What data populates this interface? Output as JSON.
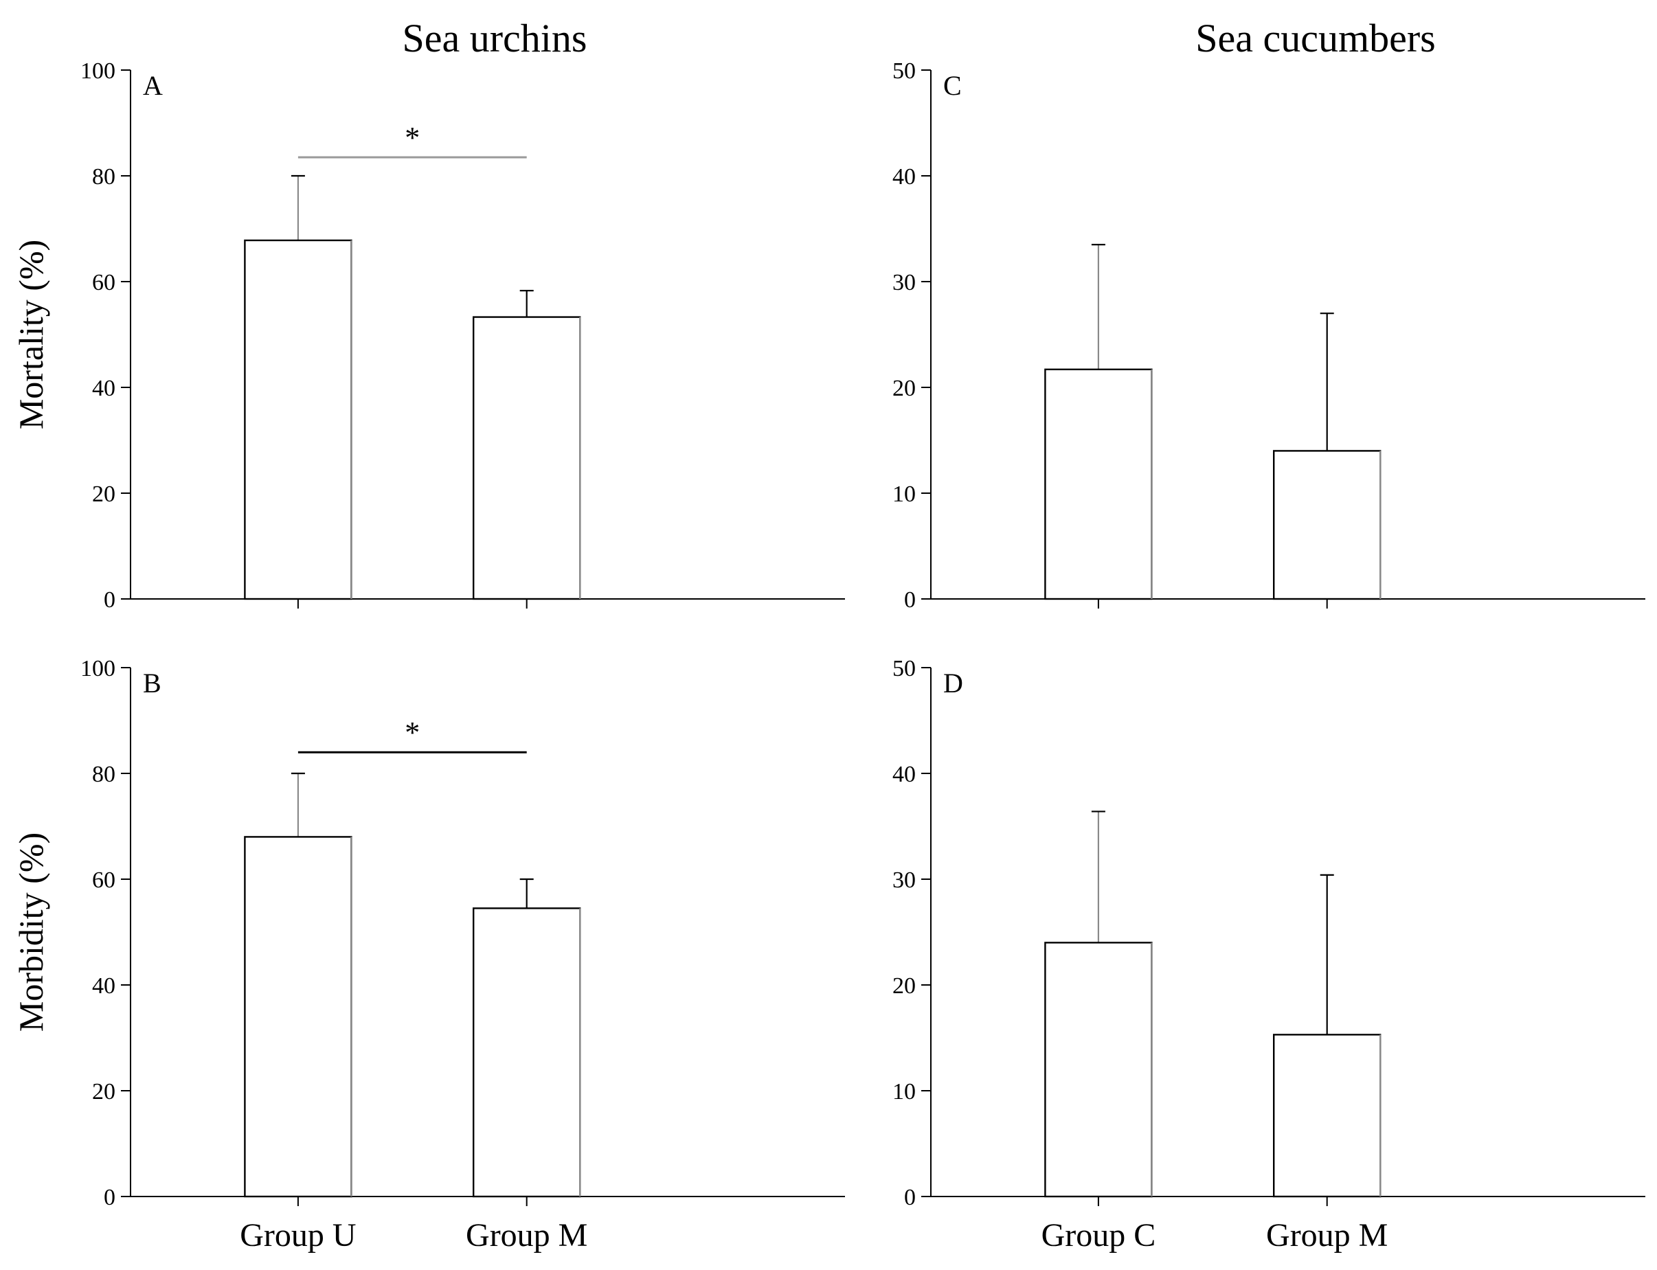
{
  "figure": {
    "column_titles": [
      "Sea urchins",
      "Sea cucumbers"
    ]
  },
  "chart_data": [
    {
      "panel": "A",
      "type": "bar",
      "title": "Sea urchins",
      "ylabel": "Mortality (%)",
      "xlabel": "",
      "categories": [
        "Group U",
        "Group M"
      ],
      "values": [
        67.8,
        53.3
      ],
      "error_upper": [
        12.2,
        5.0
      ],
      "ylim": [
        0,
        100
      ],
      "yticks": [
        0,
        20,
        40,
        60,
        80,
        100
      ],
      "significance": {
        "from": 0,
        "to": 1,
        "label": "*",
        "level": 83.5,
        "color": "#9a9a9a"
      },
      "show_category_labels": false
    },
    {
      "panel": "B",
      "type": "bar",
      "title": "",
      "ylabel": "Morbidity (%)",
      "xlabel": "",
      "categories": [
        "Group U",
        "Group M"
      ],
      "values": [
        68.0,
        54.5
      ],
      "error_upper": [
        12.0,
        5.5
      ],
      "ylim": [
        0,
        100
      ],
      "yticks": [
        0,
        20,
        40,
        60,
        80,
        100
      ],
      "significance": {
        "from": 0,
        "to": 1,
        "label": "*",
        "level": 84.0,
        "color": "#000000"
      },
      "show_category_labels": true
    },
    {
      "panel": "C",
      "type": "bar",
      "title": "Sea cucumbers",
      "ylabel": "",
      "xlabel": "",
      "categories": [
        "Group C",
        "Group M"
      ],
      "values": [
        21.7,
        14.0
      ],
      "error_upper": [
        11.8,
        13.0
      ],
      "ylim": [
        0,
        50
      ],
      "yticks": [
        0,
        10,
        20,
        30,
        40,
        50
      ],
      "show_category_labels": false
    },
    {
      "panel": "D",
      "type": "bar",
      "title": "",
      "ylabel": "",
      "xlabel": "",
      "categories": [
        "Group C",
        "Group M"
      ],
      "values": [
        24.0,
        15.3
      ],
      "error_upper": [
        12.4,
        15.1
      ],
      "ylim": [
        0,
        50
      ],
      "yticks": [
        0,
        10,
        20,
        30,
        40,
        50
      ],
      "show_category_labels": true
    }
  ]
}
